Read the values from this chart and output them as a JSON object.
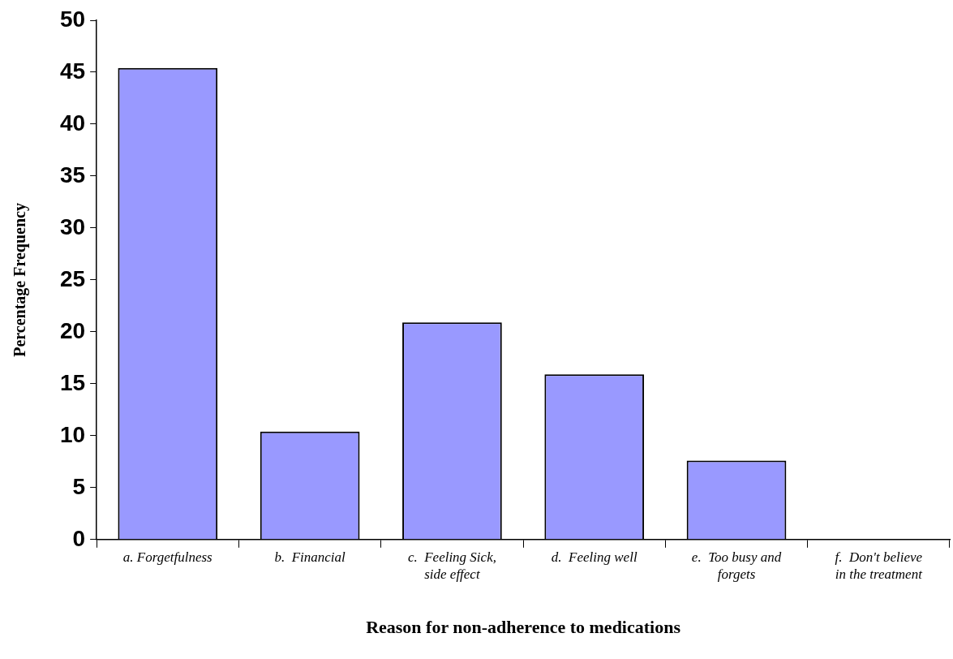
{
  "chart_data": {
    "type": "bar",
    "xlabel": "Reason for non-adherence to medications",
    "ylabel": "Percentage Frequency",
    "categories": [
      "a. Forgetfulness",
      "b.  Financial",
      "c.  Feeling Sick, side effect",
      "d.  Feeling well",
      "e.  Too busy and forgets",
      "f.  Don't believe in the treatment"
    ],
    "values": [
      45.4,
      10.4,
      20.9,
      15.9,
      7.6,
      0
    ],
    "color": "#9999ff",
    "ylim": [
      0,
      50
    ],
    "yticks": [
      0,
      5,
      10,
      15,
      20,
      25,
      30,
      35,
      40,
      45,
      50
    ],
    "grid": false,
    "legend": false
  }
}
